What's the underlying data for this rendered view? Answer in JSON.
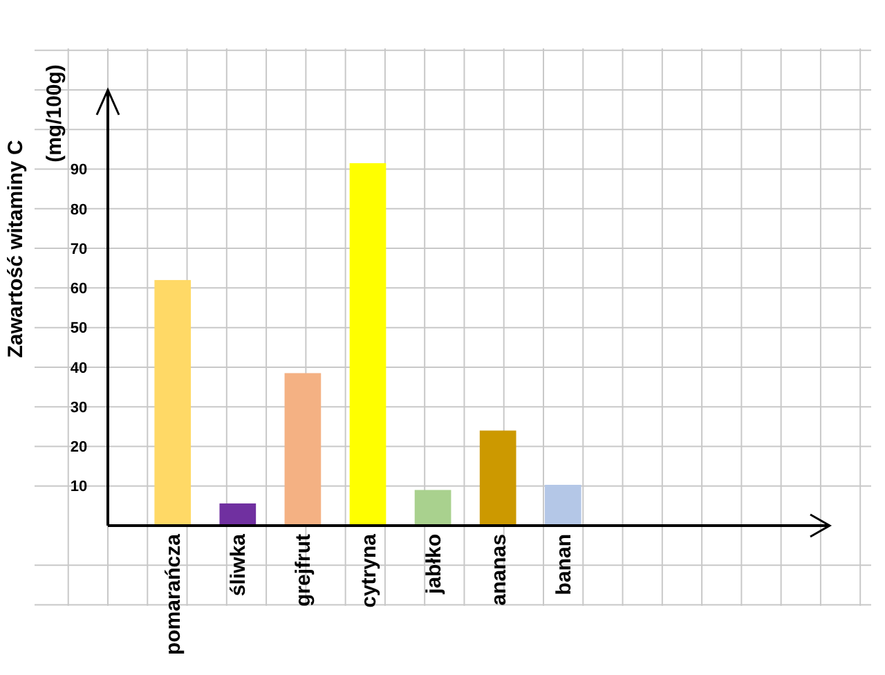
{
  "chart_data": {
    "type": "bar",
    "ylabel": "Zawartość witaminy C (mg/100g)",
    "categories": [
      "pomarańcza",
      "śliwka",
      "grejfrut",
      "cytryna",
      "jabłko",
      "ananas",
      "banan"
    ],
    "values": [
      62,
      5.6,
      38.5,
      91.5,
      9,
      24,
      10.3
    ],
    "colors": [
      "#ffd966",
      "#7030a0",
      "#f4b183",
      "#ffff00",
      "#a9d18e",
      "#cc9900",
      "#b4c7e7"
    ],
    "ylim": [
      0,
      110
    ],
    "yticks": [
      10,
      20,
      30,
      40,
      50,
      60,
      70,
      80,
      90
    ],
    "grid": true
  }
}
